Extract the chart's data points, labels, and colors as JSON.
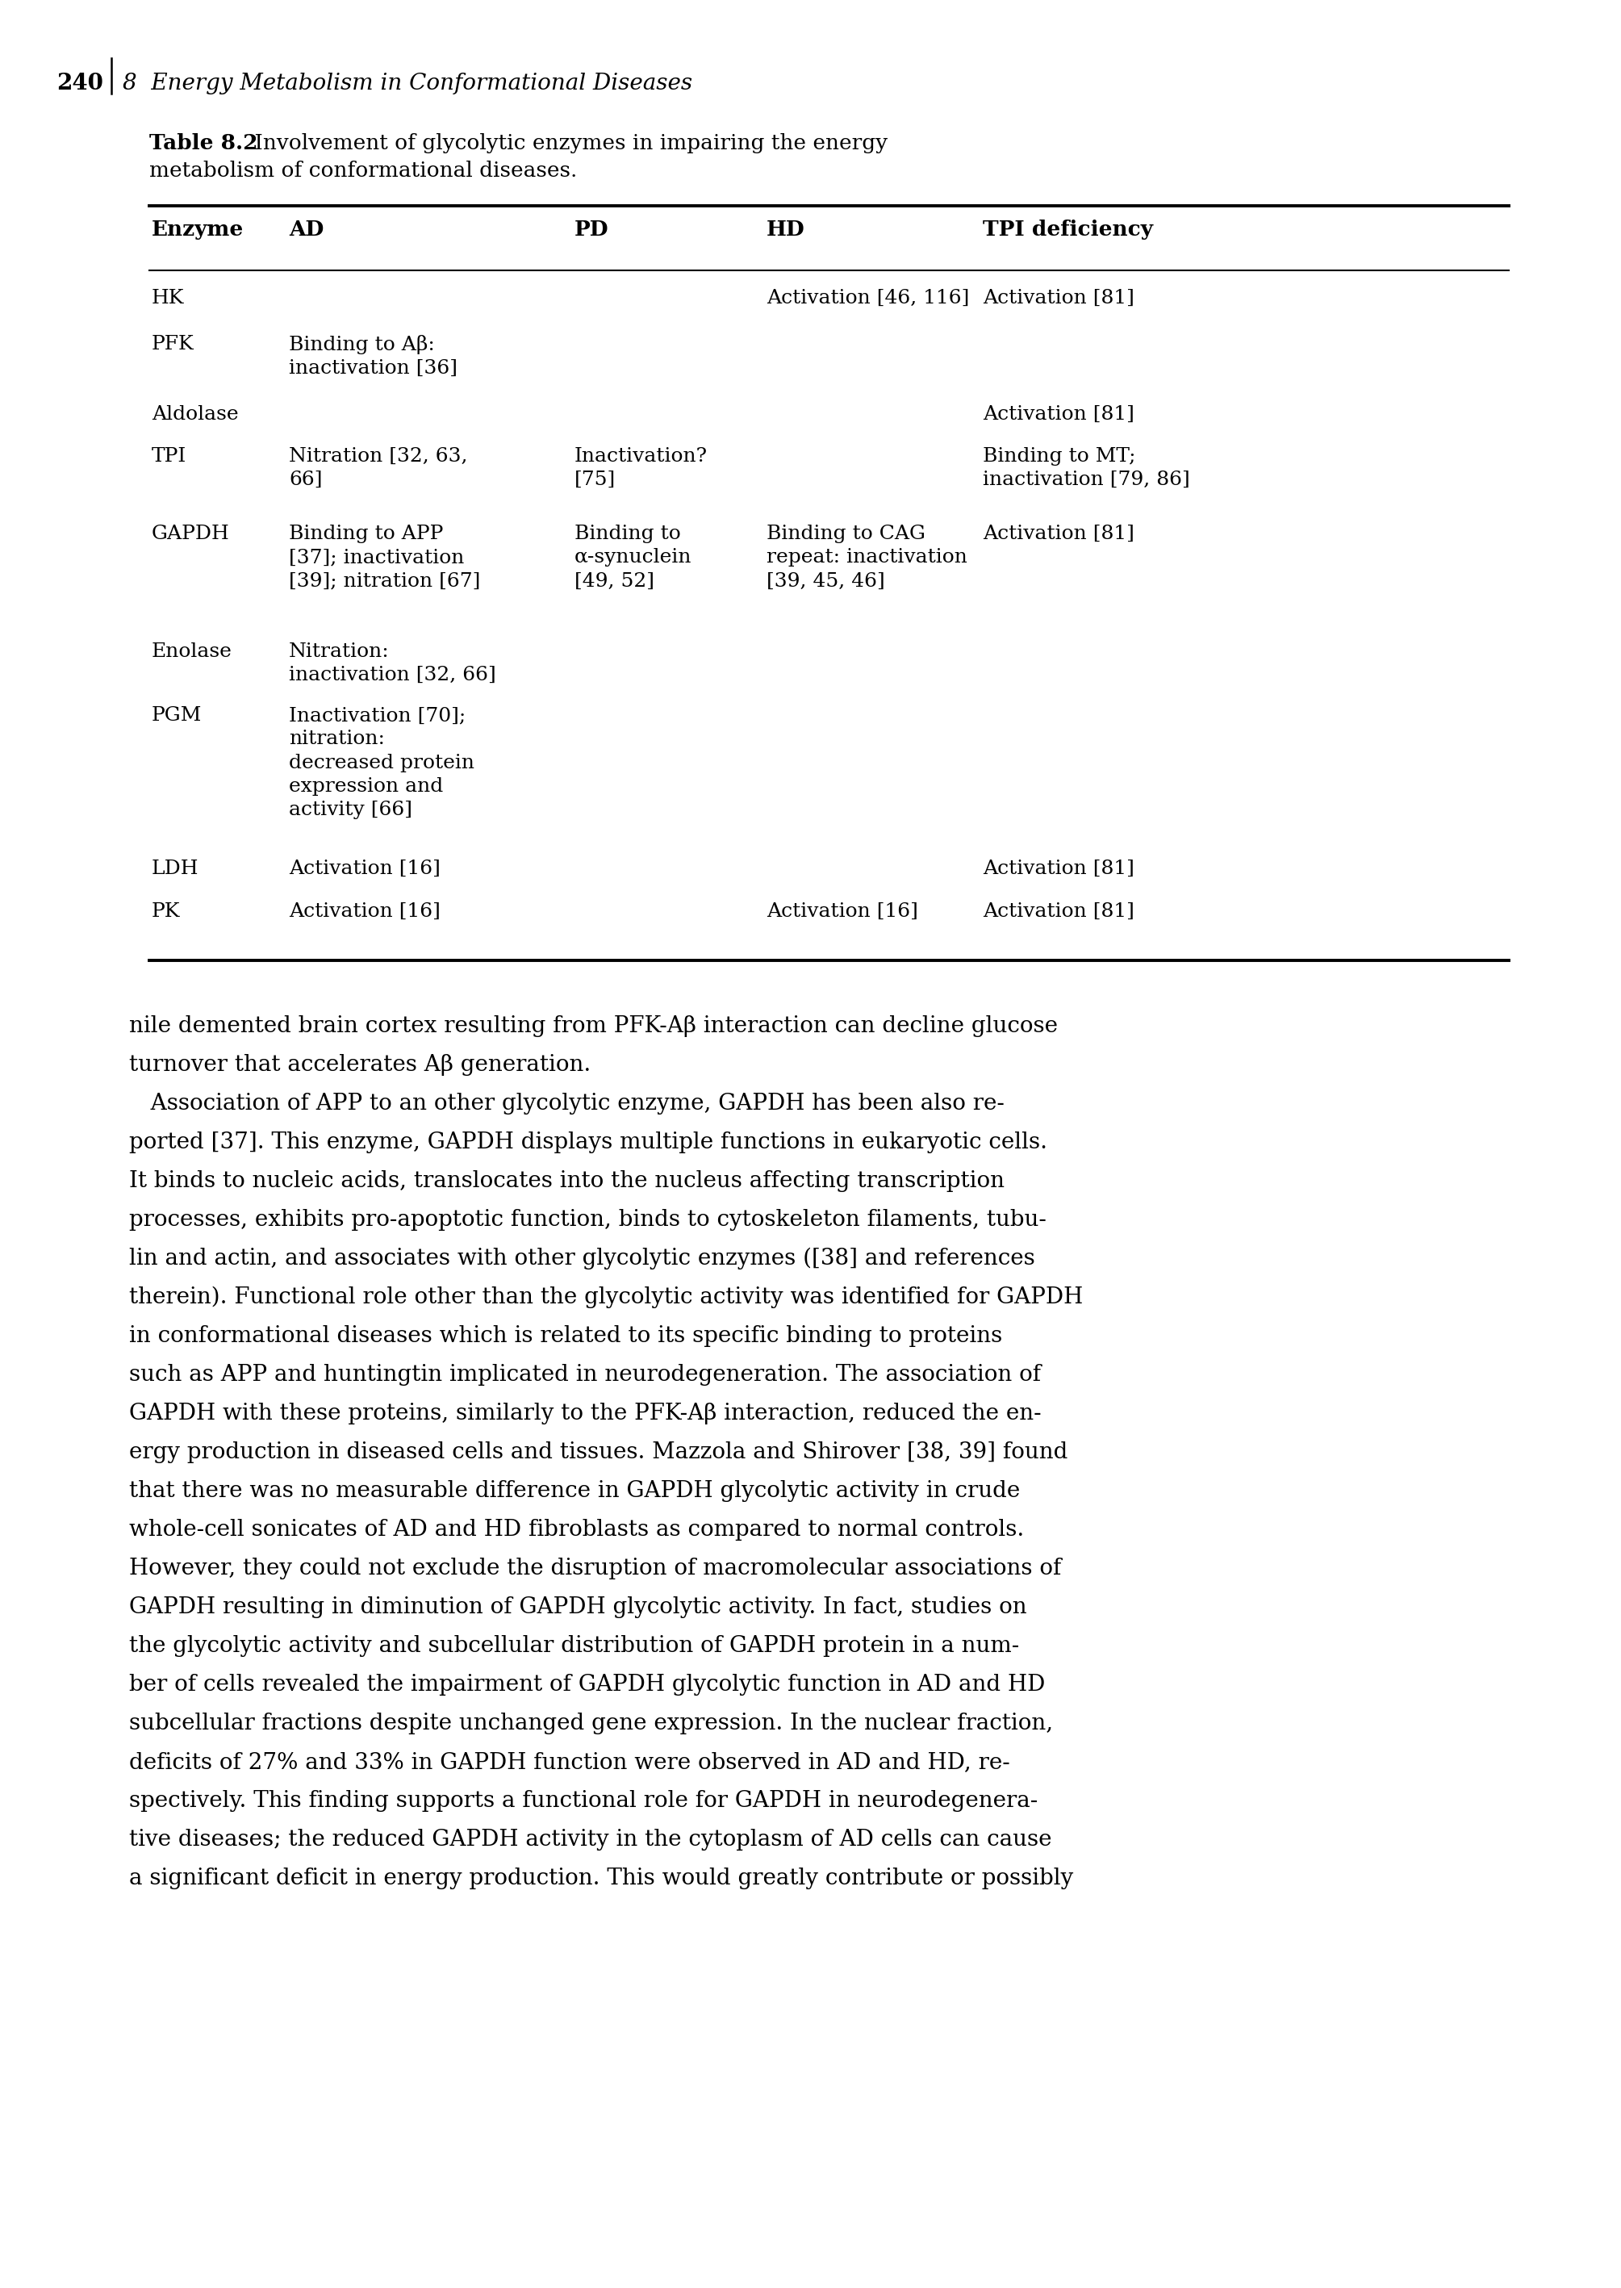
{
  "page_number": "240",
  "chapter_header": "8  Energy Metabolism in Conformational Diseases",
  "table_caption_bold": "Table 8.2",
  "table_caption_normal": " Involvement of glycolytic enzymes in impairing the energy\nmetabolism of conformational diseases.",
  "col_headers": [
    "Enzyme",
    "AD",
    "PD",
    "HD",
    "TPI deficiency"
  ],
  "table_rows": [
    {
      "enzyme": "HK",
      "AD": "",
      "PD": "",
      "HD": "Activation [46, 116]",
      "TPI": "Activation [81]"
    },
    {
      "enzyme": "PFK",
      "AD": "Binding to Aβ:\ninactivation [36]",
      "PD": "",
      "HD": "",
      "TPI": ""
    },
    {
      "enzyme": "Aldolase",
      "AD": "",
      "PD": "",
      "HD": "",
      "TPI": "Activation [81]"
    },
    {
      "enzyme": "TPI",
      "AD": "Nitration [32, 63,\n66]",
      "PD": "Inactivation?\n[75]",
      "HD": "",
      "TPI": "Binding to MT;\ninactivation [79, 86]"
    },
    {
      "enzyme": "GAPDH",
      "AD": "Binding to APP\n[37]; inactivation\n[39]; nitration [67]",
      "PD": "Binding to\nα-synuclein\n[49, 52]",
      "HD": "Binding to CAG\nrepeat: inactivation\n[39, 45, 46]",
      "TPI": "Activation [81]"
    },
    {
      "enzyme": "Enolase",
      "AD": "Nitration:\ninactivation [32, 66]",
      "PD": "",
      "HD": "",
      "TPI": ""
    },
    {
      "enzyme": "PGM",
      "AD": "Inactivation [70];\nnitration:\ndecreased protein\nexpression and\nactivity [66]",
      "PD": "",
      "HD": "",
      "TPI": ""
    },
    {
      "enzyme": "LDH",
      "AD": "Activation [16]",
      "PD": "",
      "HD": "",
      "TPI": "Activation [81]"
    },
    {
      "enzyme": "PK",
      "AD": "Activation [16]",
      "PD": "",
      "HD": "Activation [16]",
      "TPI": "Activation [81]"
    }
  ],
  "body_text_lines": [
    "nile demented brain cortex resulting from PFK-Aβ interaction can decline glucose",
    "turnover that accelerates Aβ generation.",
    "   Association of APP to an other glycolytic enzyme, GAPDH has been also re-",
    "ported [37]. This enzyme, GAPDH displays multiple functions in eukaryotic cells.",
    "It binds to nucleic acids, translocates into the nucleus affecting transcription",
    "processes, exhibits pro-apoptotic function, binds to cytoskeleton filaments, tubu-",
    "lin and actin, and associates with other glycolytic enzymes ([38] and references",
    "therein). Functional role other than the glycolytic activity was identified for GAPDH",
    "in conformational diseases which is related to its specific binding to proteins",
    "such as APP and huntingtin implicated in neurodegeneration. The association of",
    "GAPDH with these proteins, similarly to the PFK-Aβ interaction, reduced the en-",
    "ergy production in diseased cells and tissues. Mazzola and Shirover [38, 39] found",
    "that there was no measurable difference in GAPDH glycolytic activity in crude",
    "whole-cell sonicates of AD and HD fibroblasts as compared to normal controls.",
    "However, they could not exclude the disruption of macromolecular associations of",
    "GAPDH resulting in diminution of GAPDH glycolytic activity. In fact, studies on",
    "the glycolytic activity and subcellular distribution of GAPDH protein in a num-",
    "ber of cells revealed the impairment of GAPDH glycolytic function in AD and HD",
    "subcellular fractions despite unchanged gene expression. In the nuclear fraction,",
    "deficits of 27% and 33% in GAPDH function were observed in AD and HD, re-",
    "spectively. This finding supports a functional role for GAPDH in neurodegenera-",
    "tive diseases; the reduced GAPDH activity in the cytoplasm of AD cells can cause",
    "a significant deficit in energy production. This would greatly contribute or possibly"
  ],
  "page_bg": "#ffffff",
  "text_color": "#000000",
  "line_color": "#000000"
}
